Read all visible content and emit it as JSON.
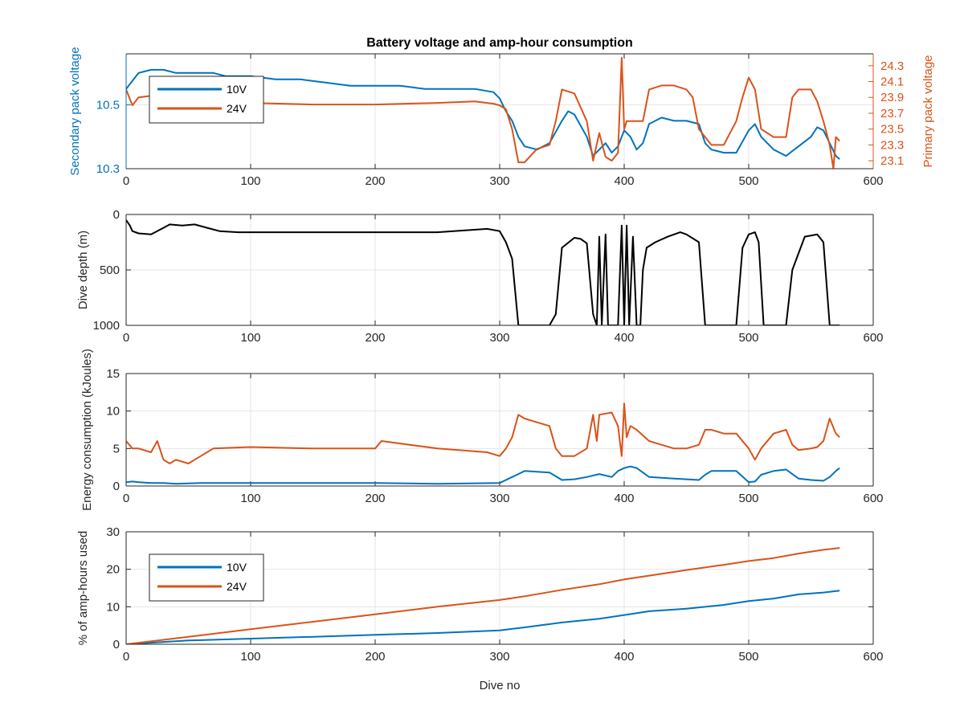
{
  "chart_data": [
    {
      "type": "line",
      "title": "Battery voltage and amp-hour consumption",
      "xlabel": "",
      "ylabel": "Secondary pack voltage",
      "ylabel_right": "Primary pack voltage",
      "xlim": [
        0,
        600
      ],
      "ylim": [
        10.3,
        10.66
      ],
      "ylim_right": [
        23.0,
        24.45
      ],
      "xticks": [
        "0",
        "100",
        "200",
        "300",
        "400",
        "500",
        "600"
      ],
      "yticks": [
        "10.3",
        "10.5"
      ],
      "yticks_right": [
        "23.1",
        "23.3",
        "23.5",
        "23.7",
        "23.9",
        "24.1",
        "24.3"
      ],
      "grid": true,
      "legend": {
        "position": "top-left",
        "entries": [
          "10V",
          "24V"
        ]
      },
      "colors": {
        "10V": "#0072BD",
        "24V": "#D95319"
      },
      "series": [
        {
          "name": "10V",
          "axis": "left",
          "x": [
            0,
            10,
            20,
            30,
            40,
            50,
            60,
            70,
            80,
            90,
            100,
            120,
            140,
            160,
            180,
            200,
            220,
            240,
            260,
            280,
            295,
            300,
            305,
            310,
            315,
            320,
            330,
            340,
            350,
            355,
            360,
            370,
            375,
            380,
            385,
            390,
            395,
            400,
            405,
            410,
            415,
            420,
            430,
            440,
            450,
            460,
            465,
            470,
            480,
            490,
            500,
            505,
            510,
            520,
            530,
            540,
            550,
            555,
            560,
            565,
            570,
            573
          ],
          "y": [
            10.55,
            10.6,
            10.61,
            10.61,
            10.6,
            10.6,
            10.6,
            10.6,
            10.59,
            10.59,
            10.59,
            10.58,
            10.58,
            10.57,
            10.56,
            10.56,
            10.56,
            10.55,
            10.55,
            10.55,
            10.54,
            10.52,
            10.48,
            10.45,
            10.4,
            10.37,
            10.36,
            10.38,
            10.45,
            10.48,
            10.47,
            10.4,
            10.34,
            10.36,
            10.38,
            10.35,
            10.37,
            10.42,
            10.4,
            10.36,
            10.38,
            10.44,
            10.46,
            10.45,
            10.45,
            10.44,
            10.38,
            10.36,
            10.35,
            10.35,
            10.42,
            10.44,
            10.4,
            10.36,
            10.34,
            10.37,
            10.4,
            10.43,
            10.42,
            10.38,
            10.34,
            10.33
          ]
        },
        {
          "name": "24V",
          "axis": "right",
          "x": [
            0,
            5,
            10,
            20,
            30,
            40,
            60,
            80,
            100,
            150,
            200,
            250,
            280,
            295,
            300,
            305,
            310,
            315,
            320,
            330,
            340,
            345,
            350,
            360,
            370,
            375,
            380,
            385,
            390,
            395,
            398,
            400,
            402,
            405,
            410,
            415,
            420,
            430,
            440,
            450,
            455,
            460,
            465,
            470,
            480,
            490,
            495,
            500,
            505,
            510,
            520,
            530,
            535,
            540,
            550,
            555,
            560,
            565,
            568,
            570,
            573
          ],
          "y": [
            24.0,
            23.8,
            23.9,
            23.92,
            23.88,
            23.86,
            23.85,
            23.85,
            23.83,
            23.81,
            23.81,
            23.83,
            23.85,
            23.82,
            23.8,
            23.75,
            23.5,
            23.08,
            23.08,
            23.25,
            23.3,
            23.6,
            24.0,
            23.95,
            23.6,
            23.1,
            23.45,
            23.15,
            23.1,
            23.2,
            24.4,
            23.5,
            23.6,
            23.6,
            23.6,
            23.6,
            24.0,
            24.05,
            24.05,
            24.0,
            23.9,
            23.5,
            23.4,
            23.3,
            23.3,
            23.6,
            23.9,
            24.15,
            24.0,
            23.5,
            23.4,
            23.4,
            23.9,
            24.0,
            24.0,
            23.85,
            23.6,
            23.3,
            23.0,
            23.4,
            23.35
          ]
        }
      ]
    },
    {
      "type": "line",
      "title": "",
      "xlabel": "",
      "ylabel": "Dive depth (m)",
      "xlim": [
        0,
        600
      ],
      "ylim": [
        0,
        1000
      ],
      "y_reversed": true,
      "xticks": [
        "0",
        "100",
        "200",
        "300",
        "400",
        "500",
        "600"
      ],
      "yticks": [
        "0",
        "500",
        "1000"
      ],
      "grid": true,
      "colors": {
        "depth": "#000000"
      },
      "series": [
        {
          "name": "",
          "x": [
            0,
            3,
            5,
            10,
            20,
            30,
            35,
            45,
            55,
            65,
            75,
            90,
            100,
            150,
            200,
            250,
            290,
            300,
            305,
            310,
            315,
            320,
            340,
            345,
            350,
            360,
            365,
            370,
            375,
            378,
            380,
            382,
            385,
            387,
            390,
            395,
            398,
            400,
            402,
            404,
            407,
            410,
            413,
            415,
            418,
            425,
            435,
            445,
            450,
            460,
            465,
            470,
            480,
            490,
            495,
            500,
            505,
            508,
            512,
            515,
            520,
            530,
            535,
            545,
            555,
            560,
            565,
            570,
            573
          ],
          "y": [
            50,
            100,
            150,
            170,
            180,
            120,
            90,
            100,
            90,
            120,
            150,
            160,
            160,
            160,
            160,
            160,
            130,
            150,
            250,
            400,
            1000,
            1000,
            1000,
            900,
            300,
            210,
            220,
            260,
            900,
            1000,
            200,
            1000,
            180,
            1000,
            1000,
            1000,
            100,
            1000,
            100,
            1000,
            200,
            1000,
            1000,
            500,
            300,
            250,
            200,
            160,
            180,
            250,
            1000,
            1000,
            1000,
            1000,
            300,
            180,
            160,
            250,
            1000,
            1000,
            1000,
            1000,
            500,
            200,
            180,
            250,
            1000,
            1000,
            1000
          ]
        }
      ]
    },
    {
      "type": "line",
      "title": "",
      "xlabel": "",
      "ylabel": "Energy consumption (kJoules)",
      "xlim": [
        0,
        600
      ],
      "ylim": [
        0,
        15
      ],
      "xticks": [
        "0",
        "100",
        "200",
        "300",
        "400",
        "500",
        "600"
      ],
      "yticks": [
        "0",
        "5",
        "10",
        "15"
      ],
      "grid": true,
      "colors": {
        "10V": "#0072BD",
        "24V": "#D95319"
      },
      "series": [
        {
          "name": "",
          "x": [
            0,
            5,
            10,
            20,
            30,
            40,
            60,
            100,
            150,
            200,
            250,
            300,
            305,
            310,
            315,
            320,
            340,
            345,
            350,
            360,
            370,
            380,
            390,
            395,
            400,
            405,
            410,
            420,
            440,
            460,
            465,
            470,
            490,
            500,
            505,
            510,
            520,
            530,
            540,
            550,
            560,
            565,
            570,
            573
          ],
          "y": [
            0.5,
            0.6,
            0.5,
            0.4,
            0.4,
            0.3,
            0.4,
            0.4,
            0.4,
            0.4,
            0.3,
            0.4,
            0.8,
            1.2,
            1.6,
            2.0,
            1.8,
            1.3,
            0.8,
            0.9,
            1.2,
            1.6,
            1.2,
            2.0,
            2.4,
            2.6,
            2.4,
            1.2,
            1.0,
            0.8,
            1.5,
            2.0,
            2.0,
            0.5,
            0.6,
            1.5,
            2.0,
            2.2,
            1.0,
            0.8,
            0.7,
            1.2,
            2.0,
            2.4
          ]
        },
        {
          "name": "",
          "x": [
            0,
            5,
            10,
            20,
            25,
            30,
            35,
            40,
            50,
            60,
            70,
            100,
            150,
            200,
            205,
            250,
            290,
            300,
            305,
            310,
            315,
            320,
            330,
            340,
            345,
            350,
            360,
            370,
            375,
            378,
            380,
            390,
            395,
            398,
            400,
            402,
            405,
            410,
            420,
            430,
            440,
            450,
            460,
            465,
            470,
            480,
            490,
            500,
            505,
            510,
            520,
            530,
            535,
            540,
            550,
            555,
            560,
            565,
            570,
            573
          ],
          "y": [
            6.0,
            5.0,
            5.0,
            4.5,
            6.0,
            3.5,
            3.0,
            3.5,
            3.0,
            4.0,
            5.0,
            5.2,
            5.0,
            5.0,
            6.0,
            5.0,
            4.5,
            4.0,
            5.0,
            6.5,
            9.5,
            9.0,
            8.5,
            8.0,
            5.0,
            4.0,
            4.0,
            5.0,
            9.5,
            6.0,
            9.5,
            9.8,
            8.0,
            4.0,
            11.0,
            6.5,
            8.0,
            7.5,
            6.0,
            5.5,
            5.0,
            5.0,
            5.5,
            7.5,
            7.5,
            7.0,
            7.0,
            5.0,
            3.5,
            5.0,
            7.0,
            7.5,
            5.5,
            4.8,
            5.0,
            5.2,
            6.0,
            9.0,
            7.0,
            6.5
          ]
        }
      ]
    },
    {
      "type": "line",
      "title": "",
      "xlabel": "Dive no",
      "ylabel": "% of amp-hours used",
      "xlim": [
        0,
        600
      ],
      "ylim": [
        0,
        30
      ],
      "xticks": [
        "0",
        "100",
        "200",
        "300",
        "400",
        "500",
        "600"
      ],
      "yticks": [
        "0",
        "10",
        "20",
        "30"
      ],
      "grid": true,
      "legend": {
        "position": "top-left",
        "entries": [
          "10V",
          "24V"
        ]
      },
      "colors": {
        "10V": "#0072BD",
        "24V": "#D95319"
      },
      "series": [
        {
          "name": "10V",
          "x": [
            0,
            50,
            100,
            150,
            200,
            250,
            300,
            320,
            350,
            380,
            400,
            420,
            450,
            480,
            500,
            520,
            540,
            560,
            573
          ],
          "y": [
            0,
            1.0,
            1.5,
            2.0,
            2.5,
            3.0,
            3.7,
            4.5,
            5.8,
            6.8,
            7.8,
            8.8,
            9.5,
            10.5,
            11.5,
            12.2,
            13.3,
            13.8,
            14.3
          ]
        },
        {
          "name": "24V",
          "x": [
            0,
            50,
            100,
            150,
            200,
            250,
            300,
            320,
            350,
            380,
            400,
            420,
            450,
            480,
            500,
            520,
            540,
            560,
            573
          ],
          "y": [
            0,
            2.0,
            4.0,
            6.0,
            8.0,
            10.0,
            11.8,
            12.8,
            14.5,
            16.0,
            17.3,
            18.3,
            19.8,
            21.2,
            22.2,
            23.0,
            24.2,
            25.2,
            25.7
          ]
        }
      ]
    }
  ]
}
